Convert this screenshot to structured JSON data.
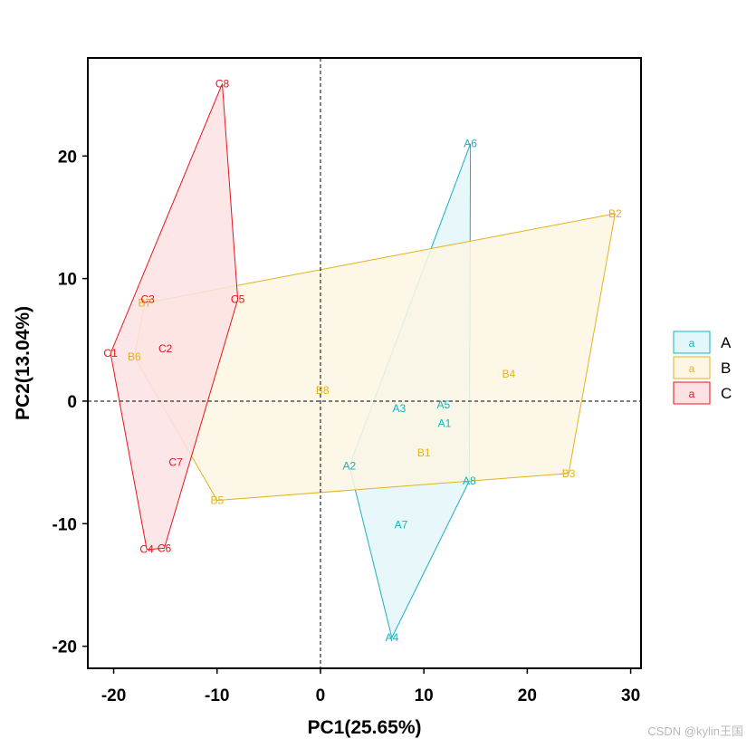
{
  "chart_data": {
    "type": "scatter",
    "xlabel": "PC1(25.65%)",
    "ylabel": "PC2(13.04%)",
    "xlim": [
      -22.5,
      31
    ],
    "ylim": [
      -21.8,
      28
    ],
    "xticks": [
      -20,
      -10,
      0,
      10,
      20,
      30
    ],
    "yticks": [
      -20,
      -10,
      0,
      10,
      20
    ],
    "reference_lines": {
      "x": 0,
      "y": 0,
      "style": "dashed"
    },
    "legend_position": "right",
    "legend_key_text": "a",
    "groups": [
      {
        "name": "A",
        "color": "#17b0c2",
        "fill": "#e3f6f9",
        "points": [
          {
            "label": "A1",
            "x": 12.0,
            "y": -1.8
          },
          {
            "label": "A2",
            "x": 2.8,
            "y": -5.3
          },
          {
            "label": "A3",
            "x": 7.6,
            "y": -0.6
          },
          {
            "label": "A4",
            "x": 6.9,
            "y": -19.3
          },
          {
            "label": "A5",
            "x": 11.9,
            "y": -0.3
          },
          {
            "label": "A6",
            "x": 14.5,
            "y": 21.0
          },
          {
            "label": "A7",
            "x": 7.8,
            "y": -10.1
          },
          {
            "label": "A8",
            "x": 14.4,
            "y": -6.5
          }
        ],
        "hull": [
          "A6",
          "A8",
          "A4",
          "A2"
        ]
      },
      {
        "name": "B",
        "color": "#e3b21b",
        "fill": "#fdf6e3",
        "points": [
          {
            "label": "B1",
            "x": 10.0,
            "y": -4.2
          },
          {
            "label": "B2",
            "x": 28.5,
            "y": 15.3
          },
          {
            "label": "B3",
            "x": 24.0,
            "y": -5.9
          },
          {
            "label": "B4",
            "x": 18.2,
            "y": 2.2
          },
          {
            "label": "B5",
            "x": -10.0,
            "y": -8.1
          },
          {
            "label": "B6",
            "x": -18.0,
            "y": 3.6
          },
          {
            "label": "B7",
            "x": -17.0,
            "y": 8.0
          },
          {
            "label": "B8",
            "x": 0.2,
            "y": 0.9
          }
        ],
        "hull": [
          "B2",
          "B3",
          "B5",
          "B6",
          "B7"
        ]
      },
      {
        "name": "C",
        "color": "#e8141c",
        "fill": "#fde2e3",
        "points": [
          {
            "label": "C1",
            "x": -20.3,
            "y": 3.9
          },
          {
            "label": "C2",
            "x": -15.0,
            "y": 4.3
          },
          {
            "label": "C3",
            "x": -16.7,
            "y": 8.3
          },
          {
            "label": "C4",
            "x": -16.8,
            "y": -12.1
          },
          {
            "label": "C5",
            "x": -8.0,
            "y": 8.3
          },
          {
            "label": "C6",
            "x": -15.1,
            "y": -12.0
          },
          {
            "label": "C7",
            "x": -14.0,
            "y": -5.0
          },
          {
            "label": "C8",
            "x": -9.5,
            "y": 25.9
          }
        ],
        "hull": [
          "C8",
          "C5",
          "C6",
          "C4",
          "C1"
        ]
      }
    ]
  },
  "watermark": "CSDN @kylin王国"
}
